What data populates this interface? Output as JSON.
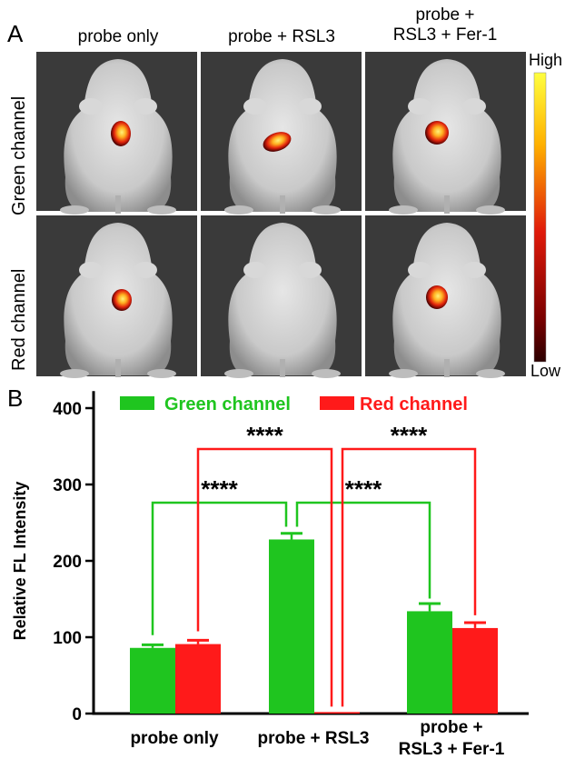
{
  "panel_a": {
    "label": "A",
    "columns": [
      "probe only",
      "probe + RSL3",
      "probe +\nRSL3 + Fer-1"
    ],
    "rows": [
      "Green channel",
      "Red channel"
    ],
    "colorbar": {
      "high": "High",
      "low": "Low"
    }
  },
  "panel_b": {
    "label": "B"
  },
  "chart_data": {
    "type": "bar",
    "title": "",
    "xlabel": "",
    "ylabel": "Relative FL Intensity",
    "ylim": [
      0,
      420
    ],
    "yticks": [
      0,
      100,
      200,
      300,
      400
    ],
    "categories": [
      "probe only",
      "probe + RSL3",
      "probe +\nRSL3 + Fer-1"
    ],
    "series": [
      {
        "name": "Green channel",
        "color": "#1fc51f",
        "values": [
          86,
          228,
          134
        ],
        "errors": [
          4,
          8,
          10
        ]
      },
      {
        "name": "Red channel",
        "color": "#ff1a1a",
        "values": [
          91,
          2,
          112
        ],
        "errors": [
          5,
          0,
          7
        ]
      }
    ],
    "legend": "top",
    "significance": [
      {
        "series": "Green channel",
        "from": 0,
        "to": 1,
        "label": "****"
      },
      {
        "series": "Green channel",
        "from": 1,
        "to": 2,
        "label": "****"
      },
      {
        "series": "Red channel",
        "from": 0,
        "to": 1,
        "label": "****"
      },
      {
        "series": "Red channel",
        "from": 1,
        "to": 2,
        "label": "****"
      }
    ]
  }
}
